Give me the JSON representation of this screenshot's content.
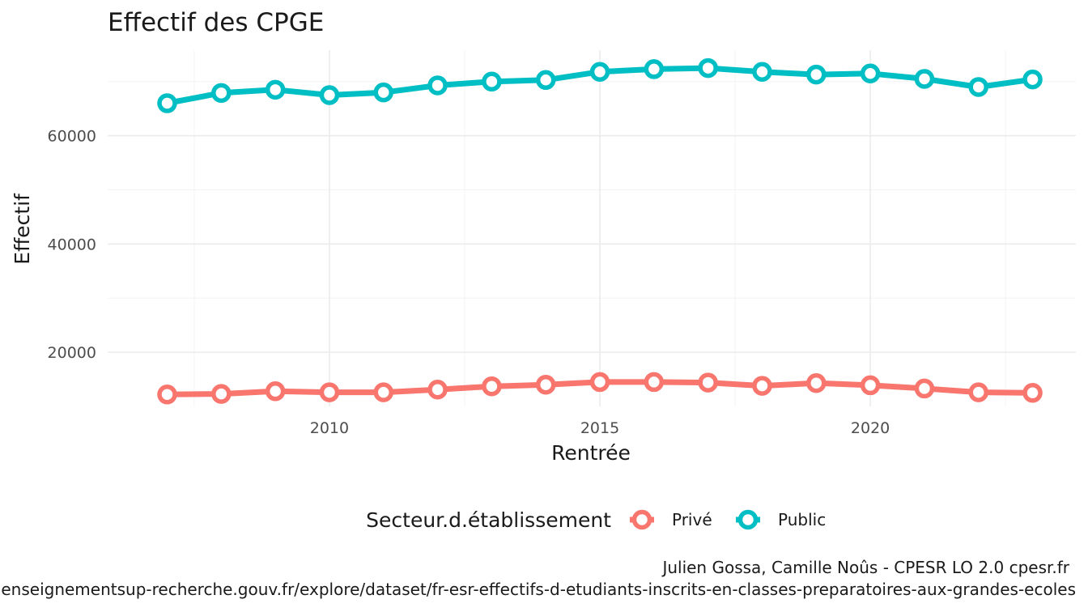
{
  "chart_data": {
    "type": "line",
    "title": "Effectif des CPGE",
    "xlabel": "Rentrée",
    "ylabel": "Effectif",
    "x": [
      2007,
      2008,
      2009,
      2010,
      2011,
      2012,
      2013,
      2014,
      2015,
      2016,
      2017,
      2018,
      2019,
      2020,
      2021,
      2022,
      2023
    ],
    "xticks": [
      2010,
      2015,
      2020
    ],
    "xlim": [
      2005.9,
      2023.8
    ],
    "ylim": [
      10000,
      75800
    ],
    "yticks": [
      20000,
      40000,
      60000
    ],
    "yticklabels": [
      "20000",
      "40000",
      "60000"
    ],
    "series": [
      {
        "name": "Privé",
        "color": "#F8766D",
        "values": [
          12200,
          12300,
          12800,
          12600,
          12600,
          13100,
          13700,
          14000,
          14500,
          14500,
          14400,
          13800,
          14300,
          13900,
          13300,
          12600,
          12500
        ]
      },
      {
        "name": "Public",
        "color": "#00BFC4",
        "values": [
          66000,
          67900,
          68500,
          67500,
          68000,
          69300,
          70000,
          70300,
          71800,
          72300,
          72500,
          71800,
          71300,
          71500,
          70500,
          69000,
          70400
        ]
      }
    ],
    "legend": {
      "title": "Secteur.d.établissement",
      "position": "bottom"
    },
    "grid": true,
    "caption_lines": [
      "Julien Gossa, Camille Noûs - CPESR LO 2.0 cpesr.fr",
      "https://data.enseignementsup-recherche.gouv.fr/explore/dataset/fr-esr-effectifs-d-etudiants-inscrits-en-classes-preparatoires-aux-grandes-ecoles"
    ]
  }
}
